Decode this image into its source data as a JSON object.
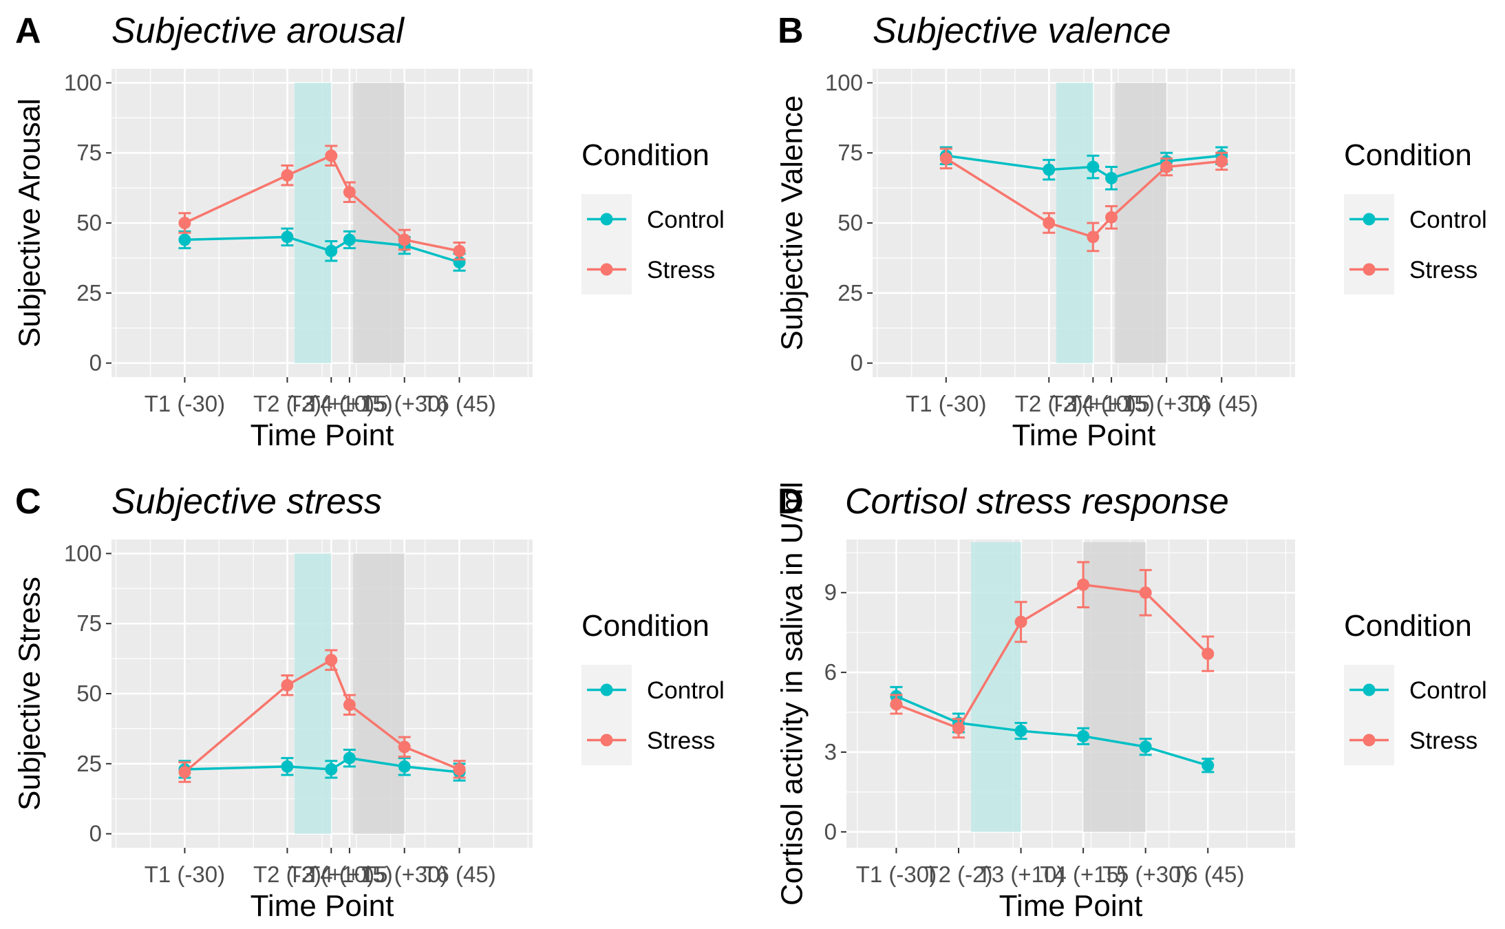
{
  "colors": {
    "control": "#00BFC4",
    "stress": "#F8766D",
    "panel_bg": "#EBEBEB",
    "grid": "#FFFFFF",
    "shade_stress_task": "#BFE9E6",
    "shade_recovery": "#D6D6D6"
  },
  "chart_data": [
    {
      "type": "line",
      "tag": "A",
      "title": "Subjective arousal",
      "xlabel": "Time Point",
      "ylabel": "Subjective Arousal",
      "categories": [
        "T1 (-30)",
        "T2 (-2)",
        "T3 (+10)",
        "T4 (+15)",
        "T5 (+30)",
        "T6 (45)"
      ],
      "x": [
        -30,
        -2,
        10,
        15,
        30,
        45
      ],
      "xlim": [
        -50,
        65
      ],
      "ylim": [
        -5,
        105
      ],
      "yticks": [
        0,
        25,
        50,
        75,
        100
      ],
      "shaded_x": [
        [
          0,
          10
        ],
        [
          16,
          30
        ]
      ],
      "series": [
        {
          "name": "Control",
          "values": [
            44,
            45,
            40,
            44,
            42,
            36
          ],
          "errors": [
            3,
            3,
            3.5,
            3,
            3,
            3
          ]
        },
        {
          "name": "Stress",
          "values": [
            50,
            67,
            74,
            61,
            44,
            40
          ],
          "errors": [
            3.5,
            3.5,
            3.5,
            3.5,
            3.5,
            3
          ]
        }
      ],
      "legend": {
        "title": "Condition",
        "position": "right"
      }
    },
    {
      "type": "line",
      "tag": "B",
      "title": "Subjective valence",
      "xlabel": "Time Point",
      "ylabel": "Subjective Valence",
      "categories": [
        "T1 (-30)",
        "T2 (-2)",
        "T3 (+10)",
        "T4 (+15)",
        "T5 (+30)",
        "T6 (45)"
      ],
      "x": [
        -30,
        -2,
        10,
        15,
        30,
        45
      ],
      "xlim": [
        -50,
        65
      ],
      "ylim": [
        -5,
        105
      ],
      "yticks": [
        0,
        25,
        50,
        75,
        100
      ],
      "shaded_x": [
        [
          0,
          10
        ],
        [
          16,
          30
        ]
      ],
      "series": [
        {
          "name": "Control",
          "values": [
            74,
            69,
            70,
            66,
            72,
            74
          ],
          "errors": [
            3,
            3.5,
            4,
            4,
            3,
            3
          ]
        },
        {
          "name": "Stress",
          "values": [
            73,
            50,
            45,
            52,
            70,
            72
          ],
          "errors": [
            3.5,
            3.5,
            5,
            4,
            3,
            3
          ]
        }
      ],
      "legend": {
        "title": "Condition",
        "position": "right"
      }
    },
    {
      "type": "line",
      "tag": "C",
      "title": "Subjective stress",
      "xlabel": "Time Point",
      "ylabel": "Subjective Stress",
      "categories": [
        "T1 (-30)",
        "T2 (-2)",
        "T3 (+10)",
        "T4 (+15)",
        "T5 (+30)",
        "T6 (45)"
      ],
      "x": [
        -30,
        -2,
        10,
        15,
        30,
        45
      ],
      "xlim": [
        -50,
        65
      ],
      "ylim": [
        -5,
        105
      ],
      "yticks": [
        0,
        25,
        50,
        75,
        100
      ],
      "shaded_x": [
        [
          0,
          10
        ],
        [
          16,
          30
        ]
      ],
      "series": [
        {
          "name": "Control",
          "values": [
            23,
            24,
            23,
            27,
            24,
            22
          ],
          "errors": [
            3,
            3,
            3,
            3,
            3,
            3
          ]
        },
        {
          "name": "Stress",
          "values": [
            22,
            53,
            62,
            46,
            31,
            23
          ],
          "errors": [
            3.5,
            3.5,
            3.5,
            3.5,
            3.5,
            3
          ]
        }
      ],
      "legend": {
        "title": "Condition",
        "position": "right"
      }
    },
    {
      "type": "line",
      "tag": "D",
      "title": "Cortisol stress response",
      "xlabel": "Time Point",
      "ylabel": "Cortisol activity in saliva in U/ml",
      "categories": [
        "T1 (-30)",
        "T2 (-2)",
        "T3 (+10)",
        "T4 (+15)",
        "T5 (+30)",
        "T6 (45)"
      ],
      "x": [
        -30,
        -15,
        0,
        15,
        30,
        45
      ],
      "xlim": [
        -42,
        66
      ],
      "ylim": [
        -0.6,
        11.0
      ],
      "yticks": [
        0,
        3,
        6,
        9
      ],
      "shaded_x": [
        [
          -12,
          0
        ],
        [
          15,
          30
        ]
      ],
      "series": [
        {
          "name": "Control",
          "values": [
            5.1,
            4.1,
            3.8,
            3.6,
            3.2,
            2.5
          ],
          "errors": [
            0.35,
            0.35,
            0.3,
            0.3,
            0.3,
            0.25
          ]
        },
        {
          "name": "Stress",
          "values": [
            4.8,
            3.9,
            7.9,
            9.3,
            9.0,
            6.7
          ],
          "errors": [
            0.35,
            0.35,
            0.75,
            0.85,
            0.85,
            0.65
          ]
        }
      ],
      "legend": {
        "title": "Condition",
        "position": "right"
      }
    }
  ]
}
